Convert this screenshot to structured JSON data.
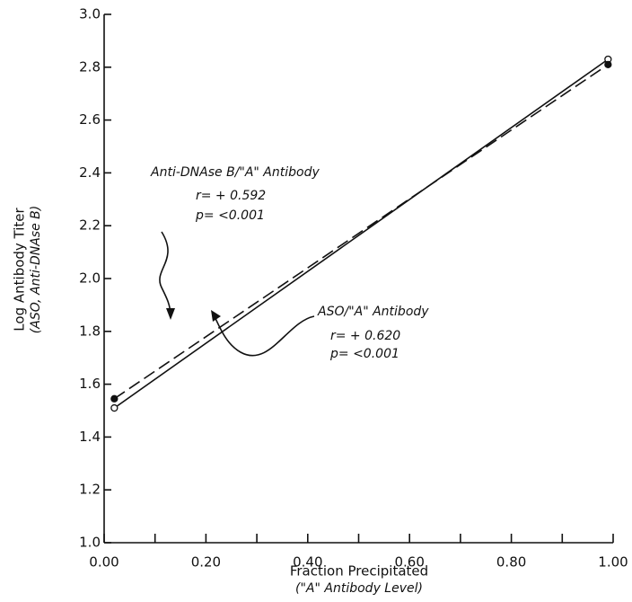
{
  "chart_data": {
    "type": "line",
    "x_label": "Fraction Precipitated",
    "x_sublabel": "(\"A\" Antibody Level)",
    "y_label": "Log Antibody Titer",
    "y_sublabel": "(ASO, Anti-DNAse B)",
    "xlim": [
      0,
      1
    ],
    "ylim": [
      1,
      3
    ],
    "xticks": [
      {
        "value": 0,
        "label": "0.00"
      },
      {
        "value": 0.2,
        "label": "0.20"
      },
      {
        "value": 0.4,
        "label": "0.40"
      },
      {
        "value": 0.6,
        "label": "0.60"
      },
      {
        "value": 0.8,
        "label": "0.80"
      },
      {
        "value": 1,
        "label": "1.00"
      }
    ],
    "xminor": [
      0.1,
      0.3,
      0.5,
      0.7,
      0.9
    ],
    "yticks": [
      {
        "value": 1,
        "label": "1.0"
      },
      {
        "value": 1.2,
        "label": "1.2"
      },
      {
        "value": 1.4,
        "label": "1.4"
      },
      {
        "value": 1.6,
        "label": "1.6"
      },
      {
        "value": 1.8,
        "label": "1.8"
      },
      {
        "value": 2,
        "label": "2.0"
      },
      {
        "value": 2.2,
        "label": "2.2"
      },
      {
        "value": 2.4,
        "label": "2.4"
      },
      {
        "value": 2.6,
        "label": "2.6"
      },
      {
        "value": 2.8,
        "label": "2.8"
      },
      {
        "value": 3,
        "label": "3.0"
      }
    ],
    "series": [
      {
        "name": "ASO/\"A\" Antibody",
        "color": "#111111",
        "dashed": false,
        "marker": "open",
        "x": [
          0.02,
          0.99
        ],
        "values": [
          1.51,
          2.83
        ],
        "r": "r= + 0.620",
        "p": "p= <0.001"
      },
      {
        "name": "Anti-DNAse B/\"A\" Antibody",
        "color": "#111111",
        "dashed": true,
        "marker": "filled",
        "x": [
          0.02,
          0.99
        ],
        "values": [
          1.545,
          2.81
        ],
        "r": "r= + 0.592",
        "p": "p= <0.001"
      }
    ]
  }
}
